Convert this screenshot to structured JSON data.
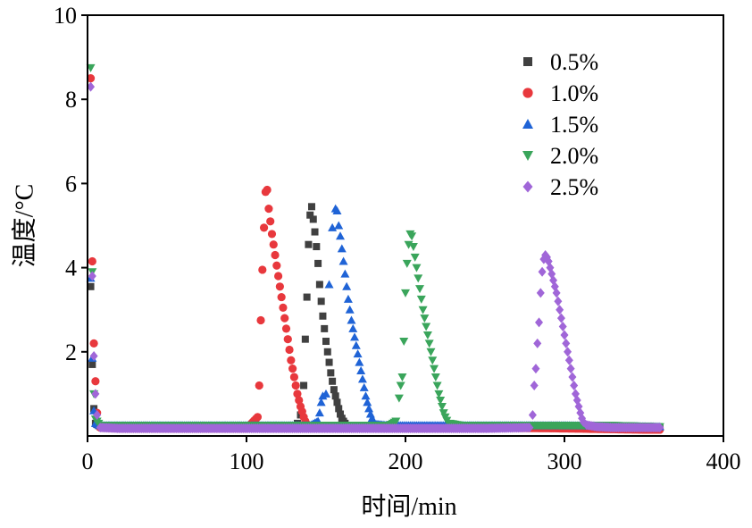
{
  "chart_data": {
    "type": "scatter",
    "xlabel": "时间/min",
    "ylabel": "温度/°C",
    "xlim": [
      0,
      400
    ],
    "ylim": [
      0,
      10
    ],
    "x_ticks": [
      "0",
      "100",
      "200",
      "300",
      "400"
    ],
    "y_ticks": [
      "2",
      "4",
      "6",
      "8",
      "10"
    ],
    "grid": false,
    "legend_position": "top-right",
    "series": [
      {
        "name": "0.5%",
        "marker": "square",
        "color": "#404040",
        "points": [
          [
            2,
            3.55
          ],
          [
            3,
            1.7
          ],
          [
            4,
            0.65
          ],
          [
            5,
            0.3
          ],
          [
            8,
            0.22
          ],
          [
            20,
            0.22
          ],
          [
            50,
            0.22
          ],
          [
            80,
            0.22
          ],
          [
            100,
            0.22
          ],
          [
            120,
            0.22
          ],
          [
            130,
            0.22
          ],
          [
            132,
            0.3
          ],
          [
            134,
            0.5
          ],
          [
            136,
            1.2
          ],
          [
            137,
            2.3
          ],
          [
            138,
            3.3
          ],
          [
            139,
            4.55
          ],
          [
            140,
            5.25
          ],
          [
            141,
            5.45
          ],
          [
            142,
            5.15
          ],
          [
            143,
            4.85
          ],
          [
            144,
            4.5
          ],
          [
            145,
            4.1
          ],
          [
            146,
            3.6
          ],
          [
            147,
            3.2
          ],
          [
            148,
            2.85
          ],
          [
            149,
            2.55
          ],
          [
            150,
            2.25
          ],
          [
            151,
            2.0
          ],
          [
            152,
            1.75
          ],
          [
            153,
            1.5
          ],
          [
            154,
            1.3
          ],
          [
            155,
            1.1
          ],
          [
            156,
            0.95
          ],
          [
            157,
            0.8
          ],
          [
            158,
            0.65
          ],
          [
            159,
            0.52
          ],
          [
            160,
            0.42
          ],
          [
            161,
            0.35
          ],
          [
            162,
            0.3
          ],
          [
            164,
            0.25
          ],
          [
            168,
            0.22
          ],
          [
            175,
            0.22
          ],
          [
            200,
            0.22
          ],
          [
            250,
            0.22
          ],
          [
            300,
            0.22
          ],
          [
            350,
            0.2
          ],
          [
            360,
            0.2
          ]
        ]
      },
      {
        "name": "1.0%",
        "marker": "circle",
        "color": "#e8383d",
        "points": [
          [
            2,
            8.5
          ],
          [
            3,
            4.15
          ],
          [
            4,
            2.2
          ],
          [
            5,
            1.3
          ],
          [
            6,
            0.55
          ],
          [
            8,
            0.2
          ],
          [
            20,
            0.18
          ],
          [
            50,
            0.18
          ],
          [
            80,
            0.18
          ],
          [
            100,
            0.18
          ],
          [
            107,
            0.45
          ],
          [
            108,
            1.2
          ],
          [
            109,
            2.75
          ],
          [
            110,
            3.95
          ],
          [
            111,
            4.95
          ],
          [
            112,
            5.8
          ],
          [
            113,
            5.85
          ],
          [
            114,
            5.4
          ],
          [
            115,
            5.1
          ],
          [
            116,
            4.8
          ],
          [
            117,
            4.55
          ],
          [
            118,
            4.3
          ],
          [
            119,
            4.05
          ],
          [
            120,
            3.8
          ],
          [
            121,
            3.55
          ],
          [
            122,
            3.3
          ],
          [
            123,
            3.05
          ],
          [
            124,
            2.8
          ],
          [
            125,
            2.55
          ],
          [
            126,
            2.3
          ],
          [
            127,
            2.05
          ],
          [
            128,
            1.8
          ],
          [
            129,
            1.6
          ],
          [
            130,
            1.4
          ],
          [
            131,
            1.2
          ],
          [
            132,
            1.0
          ],
          [
            133,
            0.85
          ],
          [
            134,
            0.7
          ],
          [
            135,
            0.58
          ],
          [
            136,
            0.45
          ],
          [
            137,
            0.35
          ],
          [
            138,
            0.28
          ],
          [
            140,
            0.22
          ],
          [
            150,
            0.2
          ],
          [
            200,
            0.2
          ],
          [
            250,
            0.2
          ],
          [
            300,
            0.18
          ],
          [
            350,
            0.15
          ],
          [
            360,
            0.15
          ]
        ]
      },
      {
        "name": "1.5%",
        "marker": "triangle-up",
        "color": "#1f63d6",
        "points": [
          [
            2,
            3.75
          ],
          [
            3,
            1.85
          ],
          [
            4,
            0.6
          ],
          [
            5,
            0.3
          ],
          [
            8,
            0.25
          ],
          [
            20,
            0.25
          ],
          [
            50,
            0.25
          ],
          [
            100,
            0.25
          ],
          [
            140,
            0.25
          ],
          [
            145,
            0.35
          ],
          [
            146,
            0.55
          ],
          [
            147,
            0.8
          ],
          [
            148,
            0.95
          ],
          [
            150,
            1.0
          ],
          [
            152,
            3.6
          ],
          [
            154,
            4.95
          ],
          [
            156,
            5.4
          ],
          [
            157,
            5.35
          ],
          [
            158,
            5.0
          ],
          [
            159,
            4.75
          ],
          [
            160,
            4.45
          ],
          [
            161,
            4.15
          ],
          [
            162,
            3.85
          ],
          [
            163,
            3.55
          ],
          [
            164,
            3.25
          ],
          [
            165,
            3.0
          ],
          [
            166,
            2.75
          ],
          [
            167,
            2.55
          ],
          [
            168,
            2.35
          ],
          [
            169,
            2.15
          ],
          [
            170,
            1.95
          ],
          [
            171,
            1.75
          ],
          [
            172,
            1.55
          ],
          [
            173,
            1.35
          ],
          [
            174,
            1.15
          ],
          [
            175,
            0.95
          ],
          [
            176,
            0.8
          ],
          [
            177,
            0.65
          ],
          [
            178,
            0.52
          ],
          [
            179,
            0.42
          ],
          [
            180,
            0.35
          ],
          [
            182,
            0.28
          ],
          [
            190,
            0.25
          ],
          [
            250,
            0.25
          ],
          [
            300,
            0.25
          ],
          [
            360,
            0.22
          ]
        ]
      },
      {
        "name": "2.0%",
        "marker": "triangle-down",
        "color": "#3aa55b",
        "points": [
          [
            2,
            8.75
          ],
          [
            3,
            3.9
          ],
          [
            4,
            1.0
          ],
          [
            5,
            0.4
          ],
          [
            8,
            0.25
          ],
          [
            20,
            0.25
          ],
          [
            50,
            0.25
          ],
          [
            100,
            0.25
          ],
          [
            150,
            0.25
          ],
          [
            190,
            0.25
          ],
          [
            194,
            0.35
          ],
          [
            196,
            0.9
          ],
          [
            197,
            1.2
          ],
          [
            198,
            1.4
          ],
          [
            199,
            2.25
          ],
          [
            200,
            3.4
          ],
          [
            201,
            4.1
          ],
          [
            202,
            4.55
          ],
          [
            203,
            4.8
          ],
          [
            204,
            4.75
          ],
          [
            205,
            4.5
          ],
          [
            206,
            4.25
          ],
          [
            207,
            4.0
          ],
          [
            208,
            3.75
          ],
          [
            209,
            3.5
          ],
          [
            210,
            3.25
          ],
          [
            211,
            3.0
          ],
          [
            212,
            2.8
          ],
          [
            213,
            2.6
          ],
          [
            214,
            2.4
          ],
          [
            215,
            2.2
          ],
          [
            216,
            2.0
          ],
          [
            217,
            1.8
          ],
          [
            218,
            1.6
          ],
          [
            219,
            1.4
          ],
          [
            220,
            1.2
          ],
          [
            221,
            1.0
          ],
          [
            222,
            0.85
          ],
          [
            223,
            0.7
          ],
          [
            224,
            0.55
          ],
          [
            225,
            0.45
          ],
          [
            226,
            0.37
          ],
          [
            228,
            0.3
          ],
          [
            235,
            0.25
          ],
          [
            260,
            0.25
          ],
          [
            300,
            0.25
          ],
          [
            330,
            0.25
          ],
          [
            360,
            0.22
          ]
        ]
      },
      {
        "name": "2.5%",
        "marker": "diamond",
        "color": "#a066d8",
        "points": [
          [
            2,
            8.3
          ],
          [
            3,
            3.8
          ],
          [
            4,
            1.9
          ],
          [
            5,
            1.0
          ],
          [
            6,
            0.5
          ],
          [
            8,
            0.2
          ],
          [
            20,
            0.18
          ],
          [
            50,
            0.18
          ],
          [
            100,
            0.18
          ],
          [
            150,
            0.18
          ],
          [
            200,
            0.18
          ],
          [
            250,
            0.18
          ],
          [
            278,
            0.2
          ],
          [
            280,
            0.5
          ],
          [
            281,
            1.2
          ],
          [
            282,
            1.6
          ],
          [
            283,
            2.2
          ],
          [
            284,
            2.7
          ],
          [
            285,
            3.4
          ],
          [
            286,
            3.9
          ],
          [
            287,
            4.2
          ],
          [
            288,
            4.3
          ],
          [
            289,
            4.25
          ],
          [
            290,
            4.15
          ],
          [
            291,
            4.0
          ],
          [
            292,
            3.85
          ],
          [
            293,
            3.7
          ],
          [
            294,
            3.55
          ],
          [
            295,
            3.4
          ],
          [
            296,
            3.2
          ],
          [
            297,
            3.0
          ],
          [
            298,
            2.8
          ],
          [
            299,
            2.6
          ],
          [
            300,
            2.4
          ],
          [
            301,
            2.2
          ],
          [
            302,
            2.0
          ],
          [
            303,
            1.8
          ],
          [
            304,
            1.6
          ],
          [
            305,
            1.4
          ],
          [
            306,
            1.2
          ],
          [
            307,
            1.0
          ],
          [
            308,
            0.85
          ],
          [
            309,
            0.7
          ],
          [
            310,
            0.55
          ],
          [
            311,
            0.42
          ],
          [
            312,
            0.33
          ],
          [
            314,
            0.26
          ],
          [
            320,
            0.22
          ],
          [
            330,
            0.2
          ],
          [
            345,
            0.2
          ],
          [
            360,
            0.2
          ]
        ]
      }
    ]
  }
}
